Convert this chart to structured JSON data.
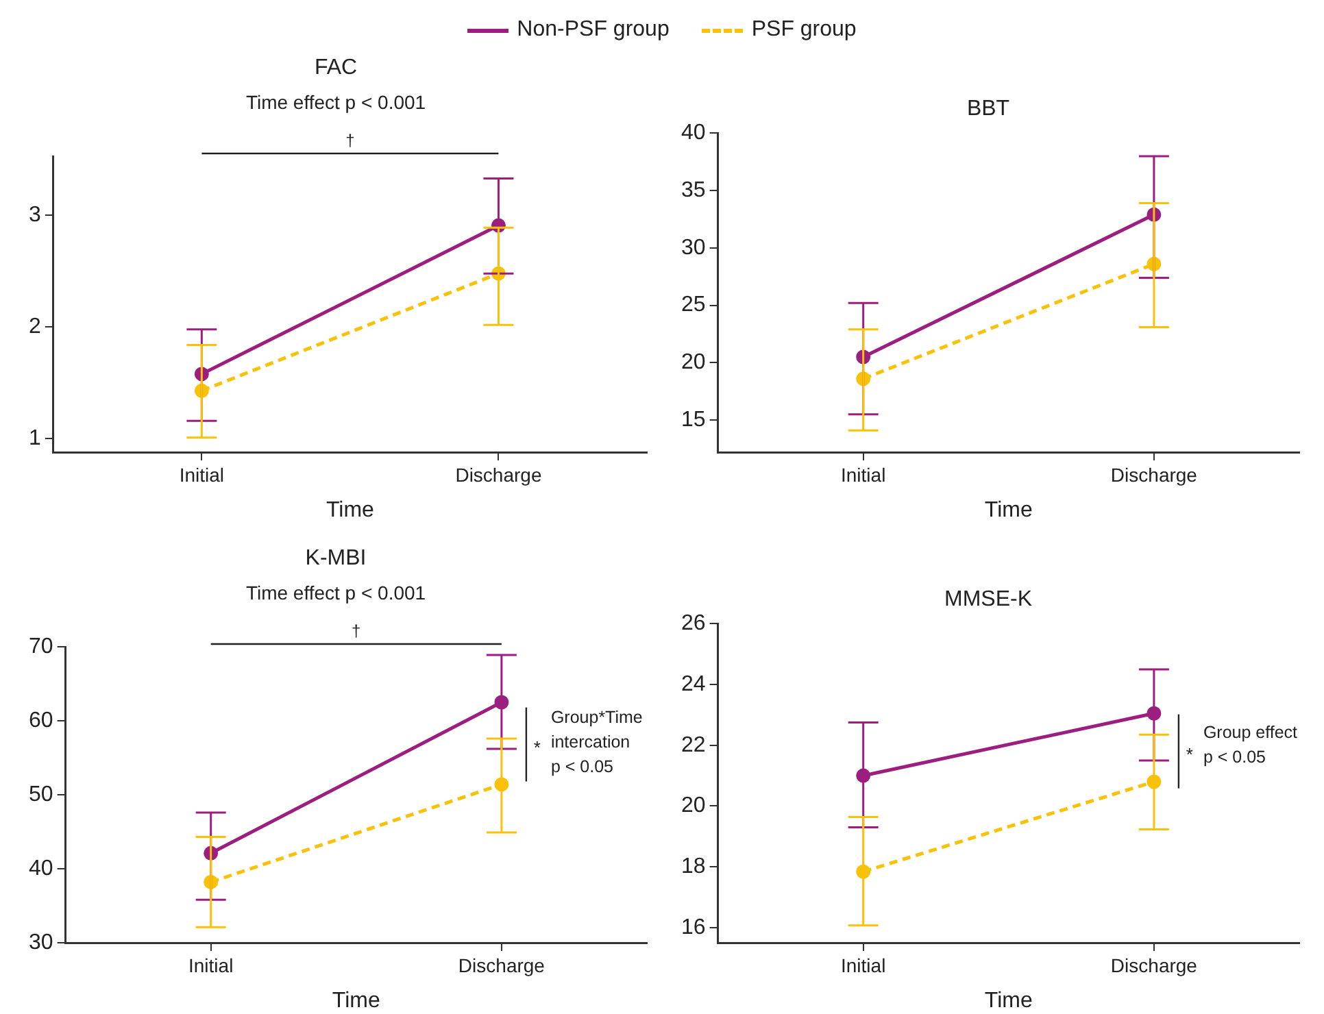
{
  "chart_data": [
    {
      "type": "line",
      "title": "FAC",
      "subtitle": "Time effect p < 0.001",
      "xlabel": "Time",
      "categories": [
        "Initial",
        "Discharge"
      ],
      "ylim": [
        0.88,
        3.53
      ],
      "yticks": [
        1,
        2,
        3
      ],
      "grid": false,
      "legend": "top",
      "marker": "circle",
      "annotations": [
        "†"
      ],
      "series": [
        {
          "name": "Non-PSF group",
          "color": "#9c1f80",
          "line_style": "solid",
          "values": [
            1.58,
            2.91
          ],
          "errors": [
            [
              1.16,
              1.98
            ],
            [
              2.48,
              3.33
            ]
          ]
        },
        {
          "name": "PSF group",
          "color": "#f9c20a",
          "line_style": "dashed",
          "values": [
            1.43,
            2.48
          ],
          "errors": [
            [
              1.01,
              1.84
            ],
            [
              2.02,
              2.89
            ]
          ]
        }
      ]
    },
    {
      "type": "line",
      "title": "BBT",
      "xlabel": "Time",
      "categories": [
        "Initial",
        "Discharge"
      ],
      "ylim": [
        12.2,
        40
      ],
      "yticks": [
        15,
        20,
        25,
        30,
        35,
        40
      ],
      "grid": false,
      "marker": "circle",
      "series": [
        {
          "name": "Non-PSF group",
          "color": "#9c1f80",
          "line_style": "solid",
          "values": [
            20.5,
            32.9
          ],
          "errors": [
            [
              15.5,
              25.2
            ],
            [
              27.4,
              38.0
            ]
          ]
        },
        {
          "name": "PSF group",
          "color": "#f9c20a",
          "line_style": "dashed",
          "values": [
            18.6,
            28.6
          ],
          "errors": [
            [
              14.1,
              22.9
            ],
            [
              23.1,
              33.9
            ]
          ]
        }
      ]
    },
    {
      "type": "line",
      "title": "K-MBI",
      "subtitle": "Time effect p < 0.001",
      "xlabel": "Time",
      "categories": [
        "Initial",
        "Discharge"
      ],
      "ylim": [
        30,
        70
      ],
      "yticks": [
        30,
        40,
        50,
        60,
        70
      ],
      "grid": false,
      "marker": "circle",
      "annotations": [
        "†",
        {
          "text": "*",
          "x": "Discharge",
          "y": 56.8
        },
        {
          "text": "Group*Time\nintercation\np < 0.05",
          "x": "Discharge",
          "y": 57
        }
      ],
      "series": [
        {
          "name": "Non-PSF group",
          "color": "#9c1f80",
          "line_style": "solid",
          "values": [
            42.1,
            62.5
          ],
          "errors": [
            [
              35.8,
              47.6
            ],
            [
              56.2,
              68.9
            ]
          ]
        },
        {
          "name": "PSF group",
          "color": "#f9c20a",
          "line_style": "dashed",
          "values": [
            38.2,
            51.4
          ],
          "errors": [
            [
              32.1,
              44.3
            ],
            [
              44.9,
              57.6
            ]
          ]
        }
      ]
    },
    {
      "type": "line",
      "title": "MMSE-K",
      "xlabel": "Time",
      "categories": [
        "Initial",
        "Discharge"
      ],
      "ylim": [
        15.5,
        26
      ],
      "yticks": [
        16,
        18,
        20,
        22,
        24,
        26
      ],
      "grid": false,
      "marker": "circle",
      "annotations": [
        {
          "text": "*",
          "x": "Discharge",
          "y": 21.8
        },
        {
          "text": "Group effect\np < 0.05",
          "x": "Discharge",
          "y": 22
        }
      ],
      "series": [
        {
          "name": "Non-PSF group",
          "color": "#9c1f80",
          "line_style": "solid",
          "values": [
            21.0,
            23.05
          ],
          "errors": [
            [
              19.3,
              22.75
            ],
            [
              21.5,
              24.5
            ]
          ]
        },
        {
          "name": "PSF group",
          "color": "#f9c20a",
          "line_style": "dashed",
          "values": [
            17.84,
            20.8
          ],
          "errors": [
            [
              16.07,
              19.64
            ],
            [
              19.23,
              22.35
            ]
          ]
        }
      ]
    }
  ]
}
